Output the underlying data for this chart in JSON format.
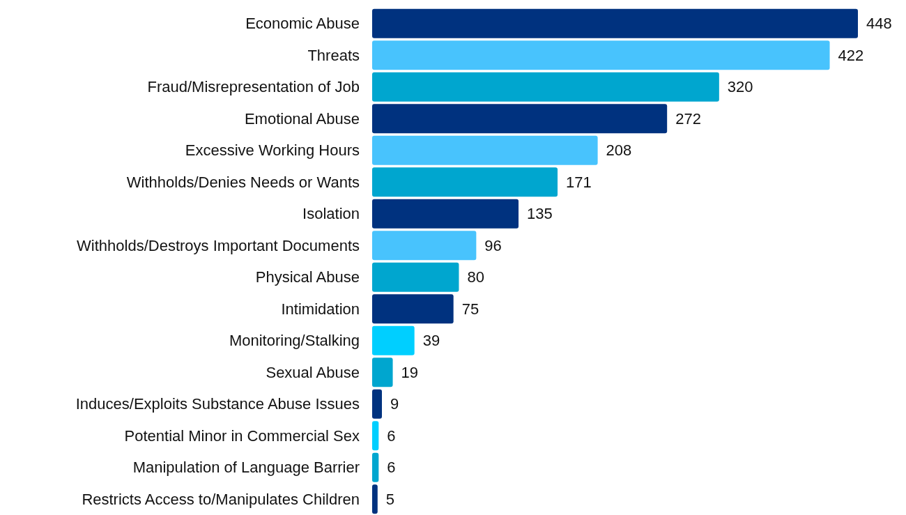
{
  "chart_data": {
    "type": "bar",
    "orientation": "horizontal",
    "data_labels": true,
    "categories": [
      "Economic Abuse",
      "Threats",
      "Fraud/Misrepresentation of Job",
      "Emotional Abuse",
      "Excessive Working Hours",
      "Withholds/Denies Needs or Wants",
      "Isolation",
      "Withholds/Destroys Important Documents",
      "Physical Abuse",
      "Intimidation",
      "Monitoring/Stalking",
      "Sexual Abuse",
      "Induces/Exploits Substance Abuse Issues",
      "Potential Minor in Commercial Sex",
      "Manipulation of Language Barrier",
      "Restricts Access to/Manipulates Children"
    ],
    "values": [
      448,
      422,
      320,
      272,
      208,
      171,
      135,
      96,
      80,
      75,
      39,
      19,
      9,
      6,
      6,
      5
    ],
    "colors": [
      "#00327f",
      "#48c3fd",
      "#00a6cf",
      "#00327f",
      "#48c3fd",
      "#00a6cf",
      "#00327f",
      "#48c3fd",
      "#00a6cf",
      "#00327f",
      "#00cfff",
      "#00a6cf",
      "#00327f",
      "#00cfff",
      "#00a6cf",
      "#00327f"
    ]
  }
}
